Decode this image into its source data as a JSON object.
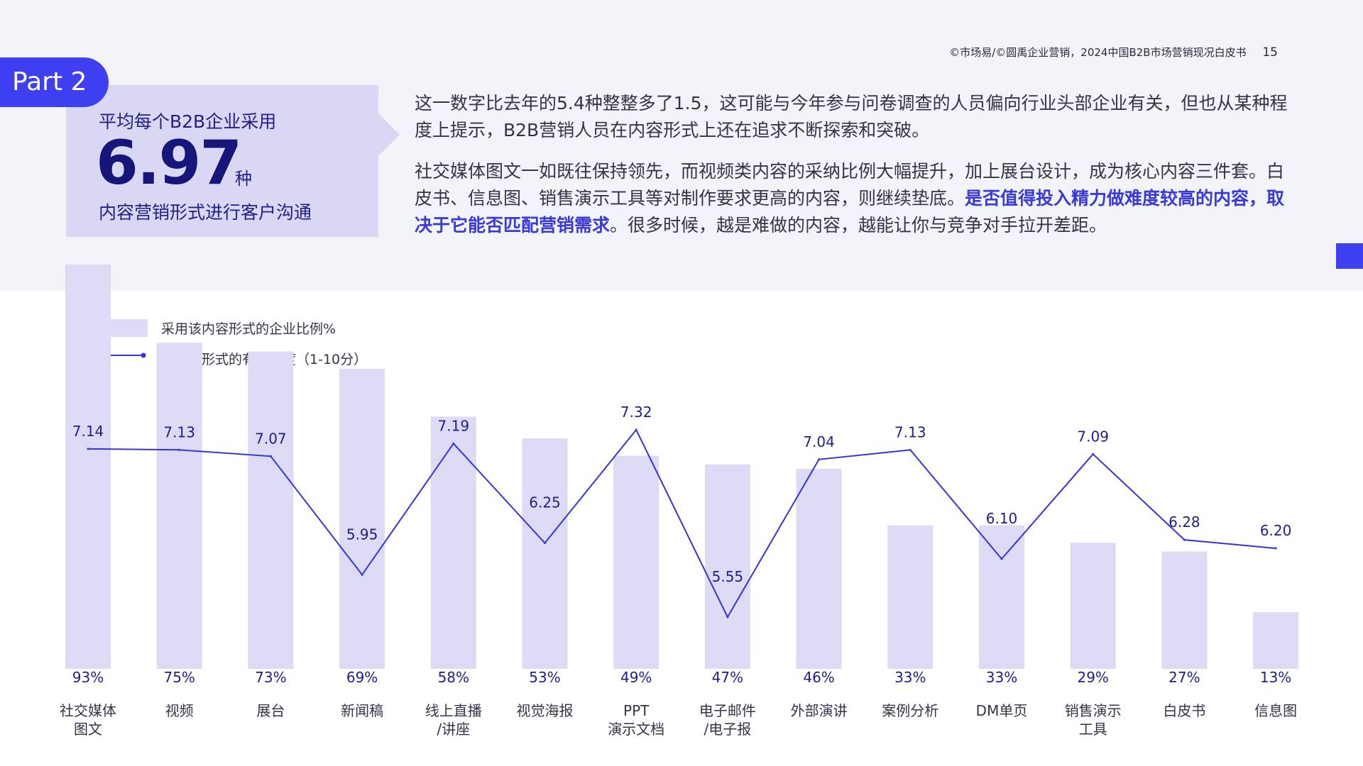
{
  "header": {
    "reference": "©市场易/©圆禹企业营销，2024中国B2B市场营销现况白皮书",
    "page_number": "15"
  },
  "part_tab": {
    "label": "Part 2"
  },
  "stat_box": {
    "line1": "平均每个B2B企业采用",
    "number": "6.97",
    "unit": "种",
    "line2": "内容营销形式进行客户沟通"
  },
  "paragraph1": "这一数字比去年的5.4种整整多了1.5，这可能与今年参与问卷调查的人员偏向行业头部企业有关，但也从某种程度上提示，B2B营销人员在内容形式上还在追求不断探索和突破。",
  "paragraph2": {
    "part1": "社交媒体图文一如既往保持领先，而视频类内容的采纳比例大幅提升，加上展台设计，成为核心内容三件套。白皮书、信息图、销售演示工具等对制作要求更高的内容，则继续垫底。",
    "highlight": "是否值得投入精力做难度较高的内容，取决于它能否匹配营销需求",
    "part2": "。很多时候，越是难做的内容，越能让你与竞争对手拉开差距。"
  },
  "colors": {
    "accent": "#3d3ff0",
    "bar": "#dcdaf4",
    "line": "#3535d6",
    "text_dark": "#1e1e8c"
  },
  "chart_data": {
    "type": "bar",
    "categories": [
      "社交媒体\n图文",
      "视频",
      "展台",
      "新闻稿",
      "线上直播\n/讲座",
      "视觉海报",
      "PPT\n演示文档",
      "电子邮件\n/电子报",
      "外部演讲",
      "案例分析",
      "DM单页",
      "销售演示\n工具",
      "白皮书",
      "信息图"
    ],
    "series": [
      {
        "name": "采用该内容形式的企业比例%",
        "type": "bar",
        "values": [
          93,
          75,
          73,
          69,
          58,
          53,
          49,
          47,
          46,
          33,
          33,
          29,
          27,
          13
        ],
        "labels": [
          "93%",
          "75%",
          "73%",
          "69%",
          "58%",
          "53%",
          "49%",
          "47%",
          "46%",
          "33%",
          "33%",
          "29%",
          "27%",
          "13%"
        ]
      },
      {
        "name": "该内容形式的有效程度（1-10分）",
        "type": "line",
        "values": [
          7.14,
          7.13,
          7.07,
          5.95,
          7.19,
          6.25,
          7.32,
          5.55,
          7.04,
          7.13,
          6.1,
          7.09,
          6.28,
          6.2
        ],
        "labels": [
          "7.14",
          "7.13",
          "7.07",
          "5.95",
          "7.19",
          "6.25",
          "7.32",
          "5.55",
          "7.04",
          "7.13",
          "6.10",
          "7.09",
          "6.28",
          "6.20"
        ]
      }
    ],
    "bar_ylim": [
      0,
      100
    ],
    "line_ylim": [
      5,
      7.5
    ],
    "legend_position": "top-left",
    "grid": false
  }
}
